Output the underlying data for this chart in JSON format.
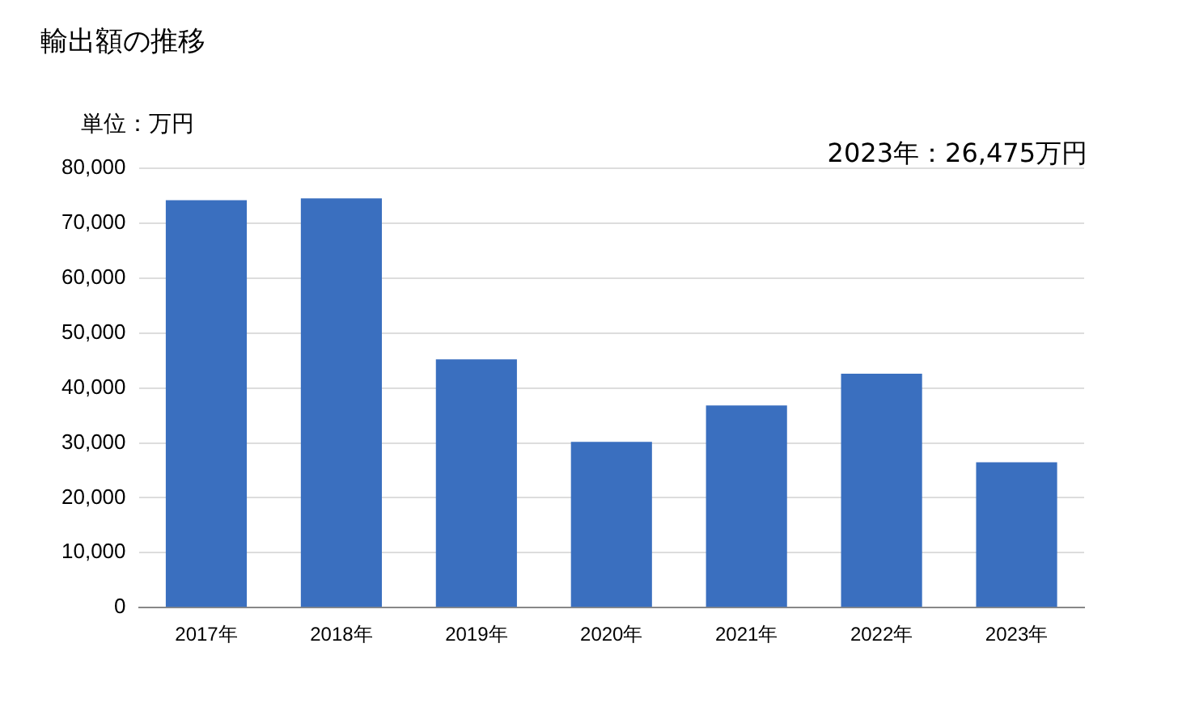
{
  "chart_data": {
    "type": "bar",
    "title": "輸出額の推移",
    "ylabel": "単位：万円",
    "annotations": [
      "2023年：26,475万円"
    ],
    "categories": [
      "2017年",
      "2018年",
      "2019年",
      "2020年",
      "2021年",
      "2022年",
      "2023年"
    ],
    "values": [
      74200,
      74500,
      45200,
      30200,
      36800,
      42600,
      26475
    ],
    "color": "#3a6fbf",
    "ylim": [
      0,
      80000
    ],
    "yticks": [
      0,
      {
        "value": 10000,
        "label": "10,000"
      },
      {
        "value": 20000,
        "label": "20,000"
      },
      {
        "value": 30000,
        "label": "30,000"
      },
      {
        "value": 40000,
        "label": "40,000"
      },
      {
        "value": 50000,
        "label": "50,000"
      },
      {
        "value": 60000,
        "label": "60,000"
      },
      {
        "value": 70000,
        "label": "70,000"
      },
      {
        "value": 80000,
        "label": "80,000"
      }
    ],
    "grid": "y",
    "legend": false
  }
}
